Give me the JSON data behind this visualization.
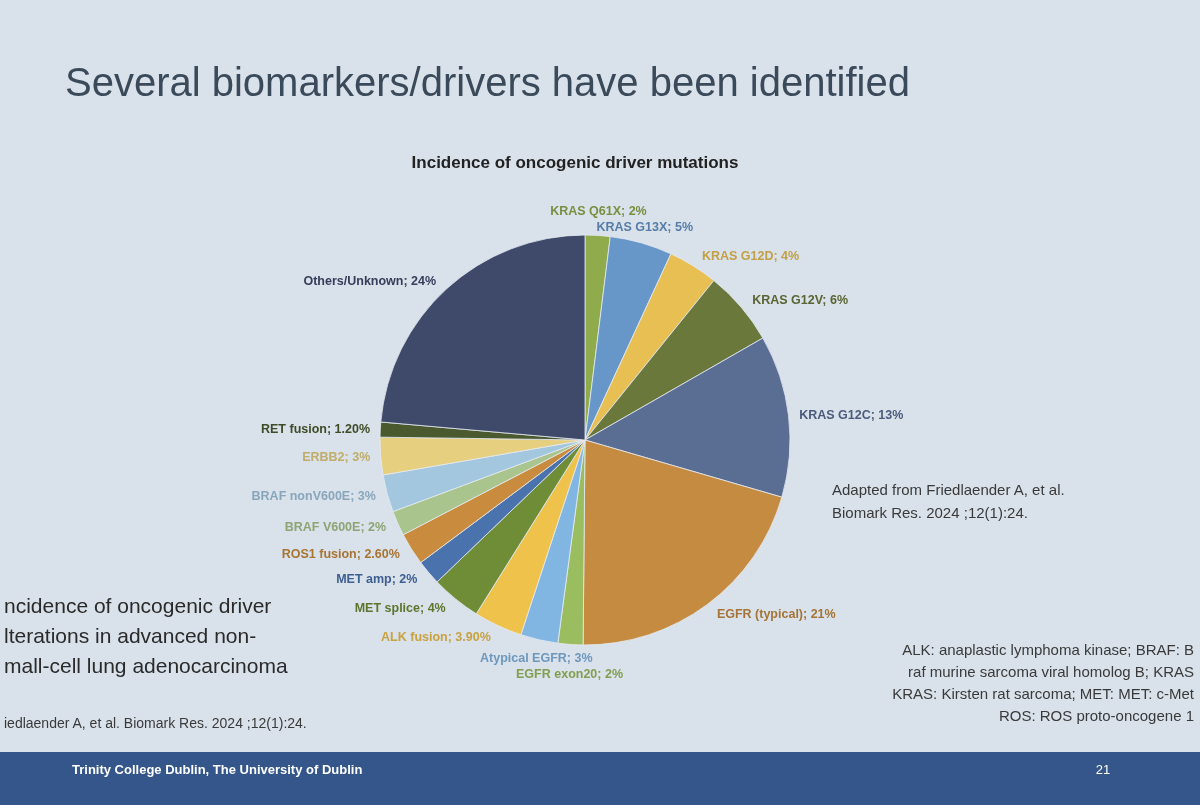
{
  "chart_data": {
    "type": "pie",
    "title": "Several biomarkers/drivers have been identified",
    "subtitle": "Incidence of oncogenic driver mutations",
    "categories": [
      "KRAS Q61X",
      "KRAS G13X",
      "KRAS G12D",
      "KRAS G12V",
      "KRAS G12C",
      "EGFR (typical)",
      "EGFR exon20",
      "Atypical EGFR",
      "ALK fusion",
      "MET splice",
      "MET amp",
      "ROS1 fusion",
      "BRAF V600E",
      "BRAF nonV600E",
      "ERBB2",
      "RET fusion",
      "Others/Unknown"
    ],
    "values": [
      2,
      5,
      4,
      6,
      13,
      21,
      2,
      3,
      3.9,
      4,
      2,
      2.6,
      2,
      3,
      3,
      1.2,
      24
    ],
    "value_labels": [
      "2%",
      "5%",
      "4%",
      "6%",
      "13%",
      "21%",
      "2%",
      "3%",
      "3.90%",
      "4%",
      "2%",
      "2.60%",
      "2%",
      "3%",
      "3%",
      "1.20%",
      "24%"
    ],
    "colors": [
      "#8fab4c",
      "#6796c8",
      "#e8bf52",
      "#6a783c",
      "#5a6d93",
      "#c58b41",
      "#9abd5f",
      "#82b6e2",
      "#efc24c",
      "#6e8d36",
      "#4a72ad",
      "#c98b3d",
      "#a9c48c",
      "#a3c7df",
      "#e6cf7e",
      "#4b592f",
      "#3f4a6b"
    ],
    "annotations": [
      "Adapted from Friedlaender A, et al.\nBiomark Res. 2024 ;12(1):24.",
      "ncidence of oncogenic driver\nlterations in advanced non-\nmall-cell lung adenocarcinoma",
      "iedlaender A, et al. Biomark Res. 2024 ;12(1):24.",
      "ALK: anaplastic lymphoma kinase; BRAF: B\nraf murine sarcoma viral homolog B; KRAS\nKRAS: Kirsten rat sarcoma; MET: MET: c-Met\nROS: ROS proto-oncogene 1",
      "Trinity College Dublin, The University of Dublin",
      "21"
    ]
  }
}
